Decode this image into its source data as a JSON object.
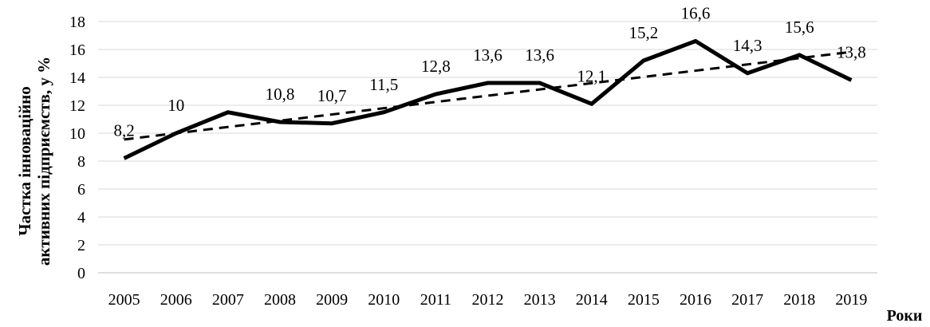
{
  "chart_data": {
    "type": "line",
    "categories": [
      "2005",
      "2006",
      "2007",
      "2008",
      "2009",
      "2010",
      "2011",
      "2012",
      "2013",
      "2014",
      "2015",
      "2016",
      "2017",
      "2018",
      "2019"
    ],
    "series": [
      {
        "values": [
          8.2,
          10,
          11.5,
          10.8,
          10.7,
          11.5,
          12.8,
          13.6,
          13.6,
          12.1,
          15.2,
          16.6,
          14.3,
          15.6,
          13.8
        ],
        "data_labels": [
          "8,2",
          "10",
          "",
          "10,8",
          "10,7",
          "11,5",
          "12,8",
          "13,6",
          "13,6",
          "12,1",
          "15,2",
          "16,6",
          "14,3",
          "15,6",
          "13,8"
        ],
        "color": "#000000"
      }
    ],
    "trendline": {
      "type": "linear",
      "style": "dashed",
      "color": "#000000"
    },
    "ylabel_lines": [
      "Частка інноваційно",
      "активних підприємств, у %"
    ],
    "xlabel": "Роки",
    "ylim": [
      0,
      18
    ],
    "yticks": [
      0,
      2,
      4,
      6,
      8,
      10,
      12,
      14,
      16,
      18
    ],
    "grid": true,
    "legend": "none"
  }
}
